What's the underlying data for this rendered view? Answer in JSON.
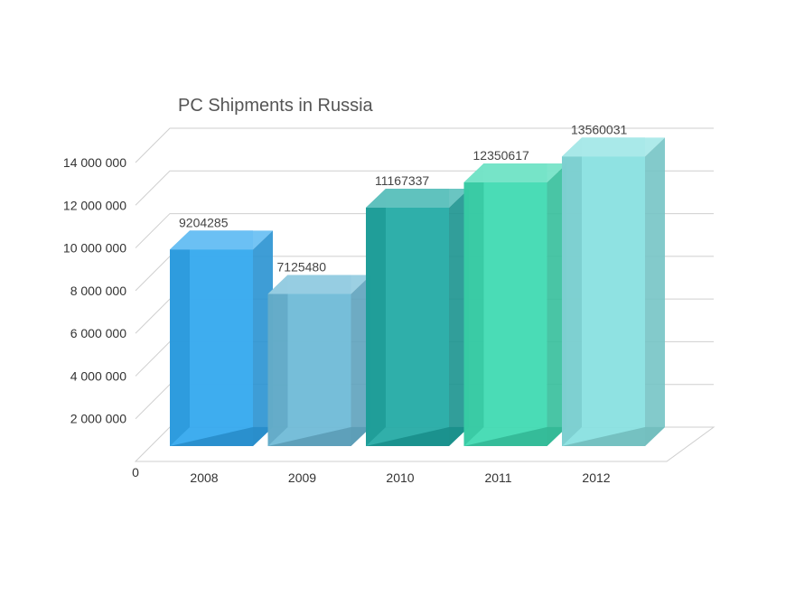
{
  "chart_data": {
    "type": "bar",
    "title": "PC Shipments in Russia",
    "xlabel": "",
    "ylabel": "",
    "categories": [
      "2008",
      "2009",
      "2010",
      "2011",
      "2012"
    ],
    "values": [
      9204285,
      7125480,
      11167337,
      12350617,
      13560031
    ],
    "data_labels": [
      "9204285",
      "7125480",
      "11167337",
      "12350617",
      "13560031"
    ],
    "ylim": [
      0,
      14000000
    ],
    "yticks": [
      0,
      2000000,
      4000000,
      6000000,
      8000000,
      10000000,
      12000000,
      14000000
    ],
    "ytick_labels": [
      "0",
      "2 000 000",
      "4 000 000",
      "6 000 000",
      "8 000 000",
      "10 000 000",
      "12 000 000",
      "14 000 000"
    ],
    "grid": true,
    "style": "3d-columns",
    "colors": [
      "#2fa6ee",
      "#6bb8d6",
      "#1fa8a3",
      "#3cd9b0",
      "#86dfe0"
    ]
  }
}
